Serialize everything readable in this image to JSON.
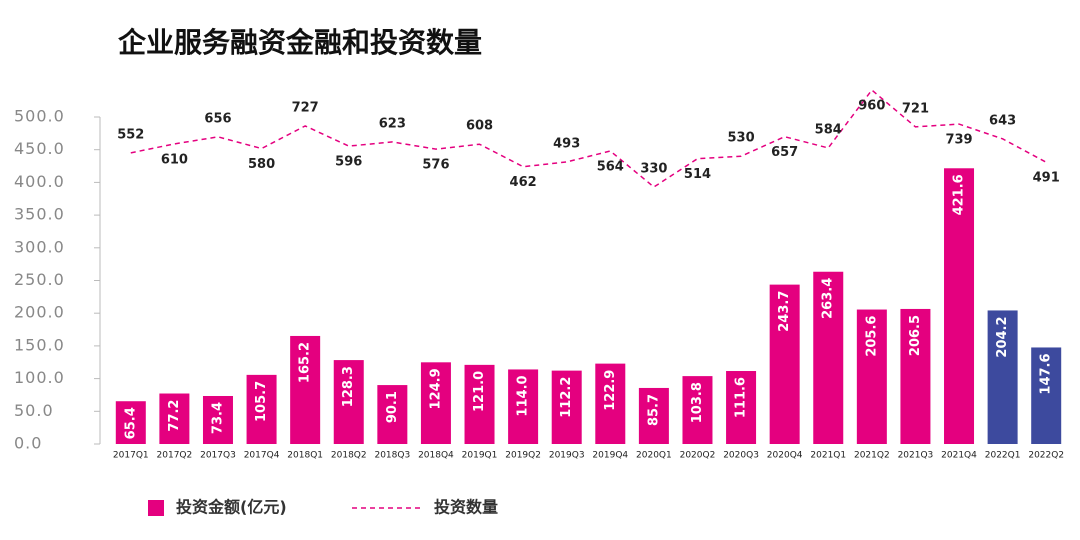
{
  "chart_data": {
    "type": "bar-line",
    "title": "企业服务融资金融和投资数量",
    "categories": [
      "2017Q1",
      "2017Q2",
      "2017Q3",
      "2017Q4",
      "2018Q1",
      "2018Q2",
      "2018Q3",
      "2018Q4",
      "2019Q1",
      "2019Q2",
      "2019Q3",
      "2019Q4",
      "2020Q1",
      "2020Q2",
      "2020Q3",
      "2020Q4",
      "2021Q1",
      "2021Q2",
      "2021Q3",
      "2021Q4",
      "2022Q1",
      "2022Q2"
    ],
    "series": [
      {
        "name": "投资金额(亿元)",
        "type": "bar",
        "color": "#e4007f",
        "colors": [
          "#e4007f",
          "#e4007f",
          "#e4007f",
          "#e4007f",
          "#e4007f",
          "#e4007f",
          "#e4007f",
          "#e4007f",
          "#e4007f",
          "#e4007f",
          "#e4007f",
          "#e4007f",
          "#e4007f",
          "#e4007f",
          "#e4007f",
          "#e4007f",
          "#e4007f",
          "#e4007f",
          "#e4007f",
          "#e4007f",
          "#3d4a9e",
          "#3d4a9e"
        ],
        "values": [
          65.4,
          77.2,
          73.4,
          105.7,
          165.2,
          128.3,
          90.1,
          124.9,
          121.0,
          114.0,
          112.2,
          122.9,
          85.7,
          103.8,
          111.6,
          243.7,
          263.4,
          205.6,
          206.5,
          421.6,
          204.2,
          147.6
        ],
        "value_labels": [
          "65.4",
          "77.2",
          "73.4",
          "105.7",
          "165.2",
          "128.3",
          "90.1",
          "124.9",
          "121.0",
          "114.0",
          "112.2",
          "122.9",
          "85.7",
          "103.8",
          "111.6",
          "243.7",
          "263.4",
          "205.6",
          "206.5",
          "421.6",
          "204.2",
          "147.6"
        ]
      },
      {
        "name": "投资数量",
        "type": "line",
        "axis": "y2",
        "color": "#e4007f",
        "dashed": true,
        "values": [
          552,
          610,
          656,
          580,
          727,
          596,
          623,
          576,
          608,
          462,
          493,
          564,
          330,
          514,
          530,
          657,
          584,
          960,
          721,
          739,
          643,
          491
        ]
      }
    ],
    "ylim": [
      0,
      500
    ],
    "yticks": [
      {
        "value": 0,
        "label": "0.0"
      },
      {
        "value": 50,
        "label": "50.0"
      },
      {
        "value": 100,
        "label": "100.0"
      },
      {
        "value": 150,
        "label": "150.0"
      },
      {
        "value": 200,
        "label": "200.0"
      },
      {
        "value": 250,
        "label": "250.0"
      },
      {
        "value": 300,
        "label": "300.0"
      },
      {
        "value": 350,
        "label": "350.0"
      },
      {
        "value": 400,
        "label": "400.0"
      },
      {
        "value": 450,
        "label": "450.0"
      },
      {
        "value": 500,
        "label": "500.0"
      }
    ],
    "y2lim": [
      -1340,
      785
    ]
  }
}
